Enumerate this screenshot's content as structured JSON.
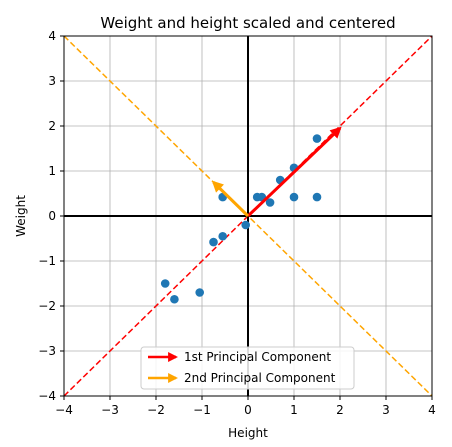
{
  "chart_data": {
    "type": "scatter",
    "title": "Weight and height scaled and centered",
    "xlabel": "Height",
    "ylabel": "Weight",
    "xlim": [
      -4,
      4
    ],
    "ylim": [
      -4,
      4
    ],
    "xticks": [
      -4,
      -3,
      -2,
      -1,
      0,
      1,
      2,
      3,
      4
    ],
    "yticks": [
      -4,
      -3,
      -2,
      -1,
      0,
      1,
      2,
      3,
      4
    ],
    "x_tick_labels": [
      "−4",
      "−3",
      "−2",
      "−1",
      "0",
      "1",
      "2",
      "3",
      "4"
    ],
    "y_tick_labels": [
      "−4",
      "−3",
      "−2",
      "−1",
      "0",
      "1",
      "2",
      "3",
      "4"
    ],
    "grid": true,
    "legend_position": "bottom-center",
    "series": [
      {
        "type": "scatter",
        "color": "#1f77b4",
        "points": [
          {
            "x": -1.8,
            "y": -1.5
          },
          {
            "x": -1.6,
            "y": -1.85
          },
          {
            "x": -1.05,
            "y": -1.7
          },
          {
            "x": -0.75,
            "y": -0.58
          },
          {
            "x": -0.55,
            "y": -0.45
          },
          {
            "x": -0.05,
            "y": -0.2
          },
          {
            "x": -0.55,
            "y": 0.42
          },
          {
            "x": 0.2,
            "y": 0.42
          },
          {
            "x": 0.3,
            "y": 0.42
          },
          {
            "x": 0.48,
            "y": 0.3
          },
          {
            "x": 0.7,
            "y": 0.8
          },
          {
            "x": 1.0,
            "y": 1.07
          },
          {
            "x": 1.0,
            "y": 0.42
          },
          {
            "x": 1.5,
            "y": 1.72
          },
          {
            "x": 1.5,
            "y": 0.42
          }
        ]
      }
    ],
    "reference_lines": [
      {
        "from": [
          -4,
          -4
        ],
        "to": [
          4,
          4
        ],
        "color": "#ff0000",
        "style": "dashed"
      },
      {
        "from": [
          -4,
          4
        ],
        "to": [
          4,
          -4
        ],
        "color": "#ffa500",
        "style": "dashed"
      }
    ],
    "arrows": [
      {
        "name": "1st Principal Component",
        "from": [
          0,
          0
        ],
        "to": [
          2.0,
          1.95
        ],
        "color": "#ff0000"
      },
      {
        "name": "2nd Principal Component",
        "from": [
          0,
          0
        ],
        "to": [
          -0.75,
          0.75
        ],
        "color": "#ffa500"
      }
    ]
  }
}
